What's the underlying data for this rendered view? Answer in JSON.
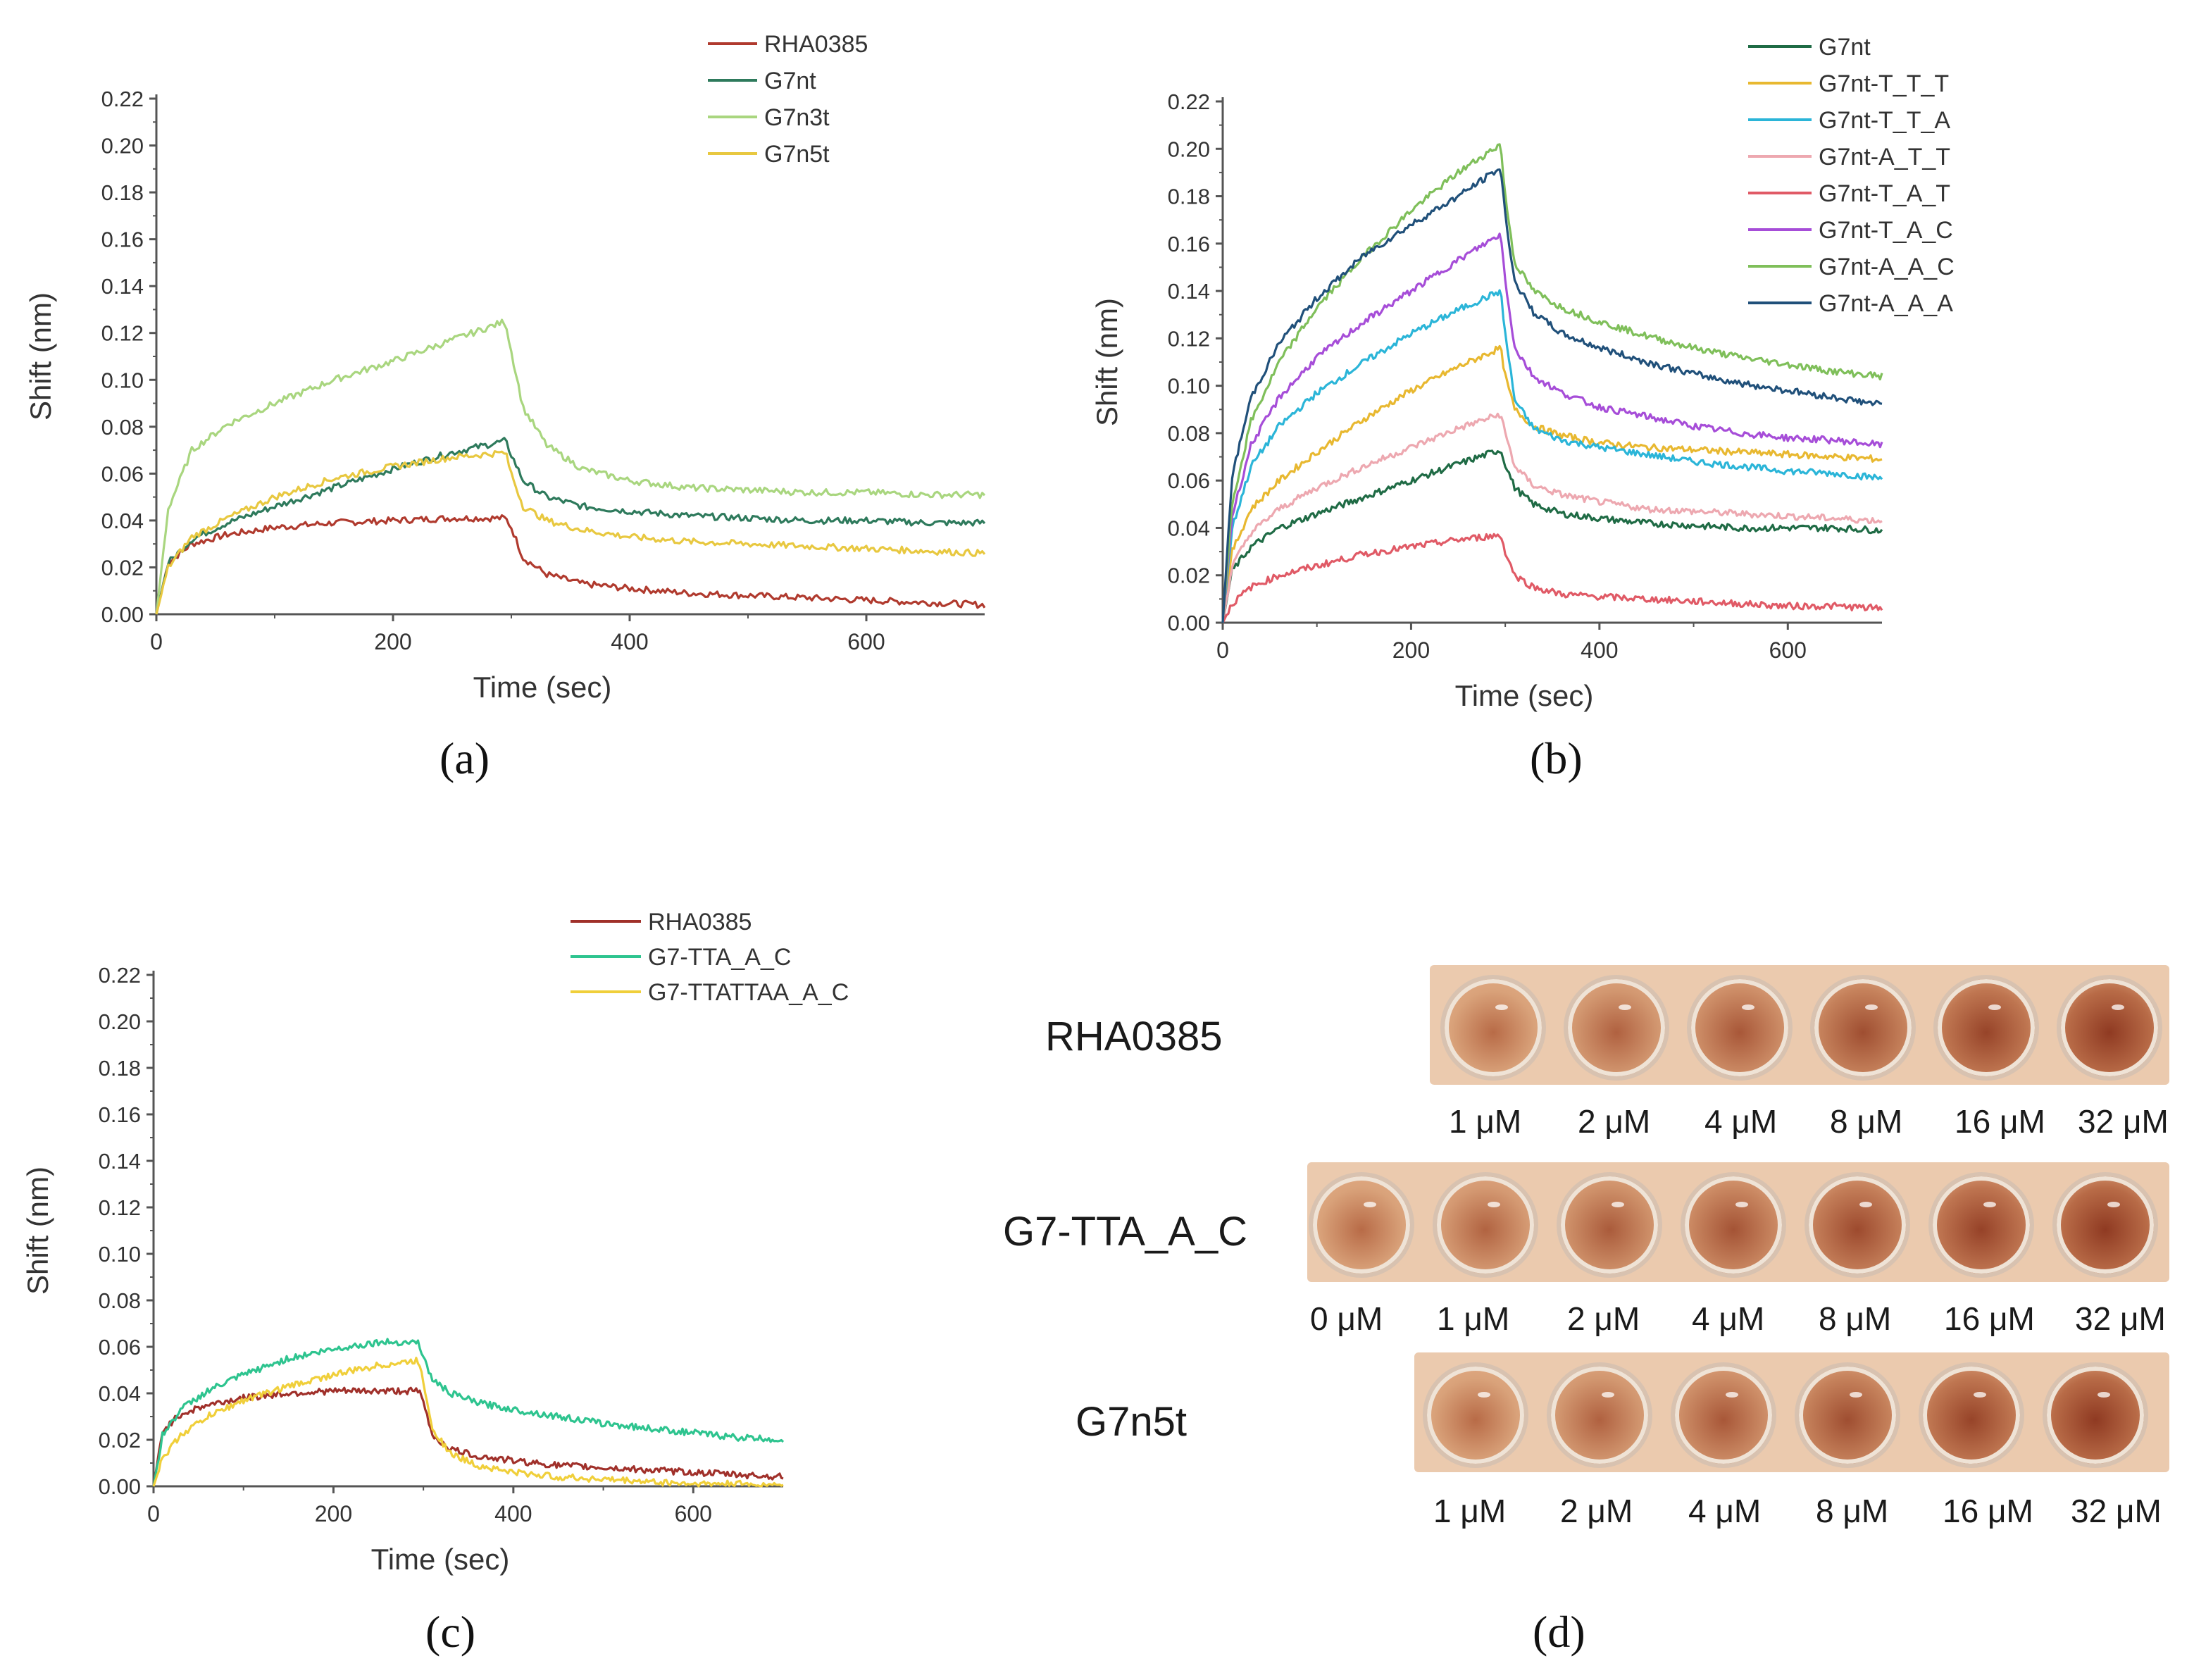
{
  "panel_labels": {
    "a": "(a)",
    "b": "(b)",
    "c": "(c)",
    "d": "(d)"
  },
  "chart_data": [
    {
      "id": "a",
      "type": "line",
      "title": "",
      "xlabel": "Time (sec)",
      "ylabel": "Shift (nm)",
      "xlim": [
        0,
        700
      ],
      "ylim": [
        0,
        0.22
      ],
      "xticks": [
        "0",
        "200",
        "400",
        "600"
      ],
      "yticks": [
        "0.00",
        "0.02",
        "0.04",
        "0.06",
        "0.08",
        "0.10",
        "0.12",
        "0.14",
        "0.16",
        "0.18",
        "0.20",
        "0.22"
      ],
      "legend_position": "top-right",
      "series": [
        {
          "name": "RHA0385",
          "color": "#b03a2e",
          "x": [
            0,
            10,
            30,
            60,
            100,
            150,
            200,
            250,
            295,
            300,
            310,
            330,
            360,
            400,
            450,
            500,
            550,
            600,
            650,
            700
          ],
          "y": [
            0,
            0.022,
            0.03,
            0.034,
            0.037,
            0.039,
            0.04,
            0.041,
            0.041,
            0.037,
            0.024,
            0.017,
            0.013,
            0.011,
            0.009,
            0.008,
            0.007,
            0.006,
            0.005,
            0.004
          ]
        },
        {
          "name": "G7nt",
          "color": "#2e7a5c",
          "x": [
            0,
            10,
            30,
            60,
            100,
            150,
            200,
            250,
            295,
            300,
            310,
            330,
            360,
            400,
            450,
            500,
            550,
            600,
            650,
            700
          ],
          "y": [
            0,
            0.022,
            0.032,
            0.039,
            0.046,
            0.054,
            0.062,
            0.069,
            0.074,
            0.068,
            0.057,
            0.05,
            0.046,
            0.044,
            0.042,
            0.041,
            0.04,
            0.04,
            0.039,
            0.039
          ]
        },
        {
          "name": "G7n3t",
          "color": "#a9d67f",
          "x": [
            0,
            10,
            30,
            60,
            100,
            150,
            200,
            250,
            295,
            300,
            310,
            330,
            360,
            400,
            450,
            500,
            550,
            600,
            650,
            700
          ],
          "y": [
            0,
            0.045,
            0.07,
            0.081,
            0.09,
            0.1,
            0.108,
            0.117,
            0.125,
            0.112,
            0.088,
            0.072,
            0.062,
            0.057,
            0.054,
            0.053,
            0.052,
            0.052,
            0.051,
            0.051
          ]
        },
        {
          "name": "G7n5t",
          "color": "#e8c840",
          "x": [
            0,
            10,
            30,
            60,
            100,
            150,
            200,
            250,
            295,
            300,
            310,
            330,
            360,
            400,
            450,
            500,
            550,
            600,
            650,
            700
          ],
          "y": [
            0,
            0.02,
            0.033,
            0.041,
            0.05,
            0.058,
            0.063,
            0.067,
            0.069,
            0.06,
            0.046,
            0.04,
            0.036,
            0.033,
            0.031,
            0.03,
            0.029,
            0.028,
            0.027,
            0.026
          ]
        }
      ]
    },
    {
      "id": "b",
      "type": "line",
      "title": "",
      "xlabel": "Time (sec)",
      "ylabel": "Shift (nm)",
      "xlim": [
        0,
        700
      ],
      "ylim": [
        0,
        0.22
      ],
      "xticks": [
        "0",
        "200",
        "400",
        "600"
      ],
      "yticks": [
        "0.00",
        "0.02",
        "0.04",
        "0.06",
        "0.08",
        "0.10",
        "0.12",
        "0.14",
        "0.16",
        "0.18",
        "0.20",
        "0.22"
      ],
      "legend_position": "top-right",
      "series": [
        {
          "name": "G7nt",
          "color": "#1f6b45",
          "x": [
            0,
            10,
            30,
            60,
            100,
            150,
            200,
            250,
            295,
            300,
            310,
            330,
            360,
            400,
            450,
            500,
            550,
            600,
            650,
            700
          ],
          "y": [
            0,
            0.022,
            0.032,
            0.04,
            0.046,
            0.053,
            0.06,
            0.067,
            0.073,
            0.067,
            0.057,
            0.05,
            0.046,
            0.044,
            0.042,
            0.041,
            0.04,
            0.04,
            0.04,
            0.039
          ]
        },
        {
          "name": "G7nt-T_T_T",
          "color": "#e8b830",
          "x": [
            0,
            10,
            30,
            60,
            100,
            150,
            200,
            250,
            295,
            300,
            310,
            330,
            360,
            400,
            450,
            500,
            550,
            600,
            650,
            700
          ],
          "y": [
            0,
            0.03,
            0.048,
            0.06,
            0.072,
            0.086,
            0.098,
            0.108,
            0.116,
            0.104,
            0.09,
            0.083,
            0.079,
            0.076,
            0.074,
            0.073,
            0.072,
            0.071,
            0.07,
            0.069
          ]
        },
        {
          "name": "G7nt-T_T_A",
          "color": "#2bb5d8",
          "x": [
            0,
            10,
            30,
            60,
            100,
            150,
            200,
            250,
            295,
            300,
            310,
            330,
            360,
            400,
            450,
            500,
            550,
            600,
            650,
            700
          ],
          "y": [
            0,
            0.04,
            0.066,
            0.083,
            0.097,
            0.11,
            0.122,
            0.132,
            0.14,
            0.122,
            0.094,
            0.082,
            0.077,
            0.074,
            0.071,
            0.068,
            0.066,
            0.064,
            0.063,
            0.061
          ]
        },
        {
          "name": "G7nt-A_T_T",
          "color": "#eda8b0",
          "x": [
            0,
            10,
            30,
            60,
            100,
            150,
            200,
            250,
            295,
            300,
            310,
            330,
            360,
            400,
            450,
            500,
            550,
            600,
            650,
            700
          ],
          "y": [
            0,
            0.024,
            0.038,
            0.048,
            0.057,
            0.066,
            0.074,
            0.082,
            0.088,
            0.08,
            0.066,
            0.058,
            0.054,
            0.051,
            0.048,
            0.047,
            0.046,
            0.045,
            0.044,
            0.043
          ]
        },
        {
          "name": "G7nt-T_A_T",
          "color": "#e05a66",
          "x": [
            0,
            10,
            30,
            60,
            100,
            150,
            200,
            250,
            295,
            300,
            310,
            330,
            360,
            400,
            450,
            500,
            550,
            600,
            650,
            700
          ],
          "y": [
            0,
            0.008,
            0.015,
            0.02,
            0.024,
            0.029,
            0.032,
            0.035,
            0.037,
            0.03,
            0.02,
            0.015,
            0.012,
            0.011,
            0.01,
            0.009,
            0.008,
            0.007,
            0.007,
            0.006
          ]
        },
        {
          "name": "G7nt-T_A_C",
          "color": "#a64dd8",
          "x": [
            0,
            10,
            30,
            60,
            100,
            150,
            200,
            250,
            295,
            300,
            310,
            330,
            360,
            400,
            450,
            500,
            550,
            600,
            650,
            700
          ],
          "y": [
            0,
            0.045,
            0.075,
            0.095,
            0.112,
            0.127,
            0.14,
            0.153,
            0.164,
            0.145,
            0.116,
            0.104,
            0.097,
            0.091,
            0.087,
            0.083,
            0.08,
            0.078,
            0.077,
            0.075
          ]
        },
        {
          "name": "G7nt-A_A_C",
          "color": "#7fbf5a",
          "x": [
            0,
            10,
            30,
            60,
            100,
            150,
            200,
            250,
            295,
            300,
            310,
            330,
            360,
            400,
            450,
            500,
            550,
            600,
            650,
            700
          ],
          "y": [
            0,
            0.05,
            0.085,
            0.11,
            0.133,
            0.155,
            0.174,
            0.19,
            0.202,
            0.18,
            0.152,
            0.14,
            0.133,
            0.127,
            0.121,
            0.116,
            0.112,
            0.109,
            0.106,
            0.104
          ]
        },
        {
          "name": "G7nt-A_A_A",
          "color": "#20507a",
          "x": [
            0,
            10,
            30,
            60,
            100,
            150,
            200,
            250,
            295,
            300,
            310,
            330,
            360,
            400,
            450,
            500,
            550,
            600,
            650,
            700
          ],
          "y": [
            0,
            0.062,
            0.095,
            0.118,
            0.137,
            0.155,
            0.168,
            0.18,
            0.192,
            0.172,
            0.144,
            0.131,
            0.122,
            0.116,
            0.11,
            0.105,
            0.101,
            0.098,
            0.095,
            0.092
          ]
        }
      ]
    },
    {
      "id": "c",
      "type": "line",
      "title": "",
      "xlabel": "Time (sec)",
      "ylabel": "Shift (nm)",
      "xlim": [
        0,
        700
      ],
      "ylim": [
        0,
        0.22
      ],
      "xticks": [
        "0",
        "200",
        "400",
        "600"
      ],
      "yticks": [
        "0.00",
        "0.02",
        "0.04",
        "0.06",
        "0.08",
        "0.10",
        "0.12",
        "0.14",
        "0.16",
        "0.18",
        "0.20",
        "0.22"
      ],
      "legend_position": "top-right",
      "series": [
        {
          "name": "RHA0385",
          "color": "#a0302a",
          "x": [
            0,
            10,
            30,
            60,
            100,
            150,
            200,
            250,
            295,
            300,
            310,
            330,
            360,
            400,
            450,
            500,
            550,
            600,
            650,
            700
          ],
          "y": [
            0,
            0.024,
            0.031,
            0.035,
            0.038,
            0.04,
            0.041,
            0.041,
            0.041,
            0.036,
            0.022,
            0.016,
            0.013,
            0.011,
            0.009,
            0.008,
            0.007,
            0.006,
            0.005,
            0.004
          ]
        },
        {
          "name": "G7-TTA_A_C",
          "color": "#2ec48f",
          "x": [
            0,
            10,
            30,
            60,
            100,
            150,
            200,
            250,
            295,
            300,
            310,
            330,
            360,
            400,
            450,
            500,
            550,
            600,
            650,
            700
          ],
          "y": [
            0,
            0.022,
            0.033,
            0.041,
            0.048,
            0.055,
            0.059,
            0.062,
            0.062,
            0.055,
            0.046,
            0.04,
            0.036,
            0.033,
            0.03,
            0.027,
            0.025,
            0.023,
            0.021,
            0.02
          ]
        },
        {
          "name": "G7-TTATTAA_A_C",
          "color": "#f0cf3a",
          "x": [
            0,
            10,
            30,
            60,
            100,
            150,
            200,
            250,
            295,
            300,
            310,
            330,
            360,
            400,
            450,
            500,
            550,
            600,
            650,
            700
          ],
          "y": [
            0,
            0.012,
            0.022,
            0.03,
            0.037,
            0.043,
            0.048,
            0.052,
            0.054,
            0.045,
            0.025,
            0.014,
            0.009,
            0.006,
            0.004,
            0.003,
            0.002,
            0.001,
            0.001,
            0.0
          ]
        }
      ]
    }
  ],
  "plates": {
    "rows": [
      {
        "name": "RHA0385",
        "concentrations": [
          "1 μM",
          "2 μM",
          "4 μM",
          "8 μM",
          "16 μM",
          "32 μM"
        ]
      },
      {
        "name": "G7-TTA_A_C",
        "concentrations": [
          "0 μM",
          "1 μM",
          "2 μM",
          "4 μM",
          "8 μM",
          "16 μM",
          "32 μM"
        ]
      },
      {
        "name": "G7n5t",
        "concentrations": [
          "1 μM",
          "2 μM",
          "4 μM",
          "8 μM",
          "16 μM",
          "32 μM"
        ]
      }
    ],
    "well_colors": {
      "light": "#d9a27a",
      "mid": "#b86b47",
      "dark": "#8f3a22",
      "plate_background": "#ebcaae"
    }
  }
}
